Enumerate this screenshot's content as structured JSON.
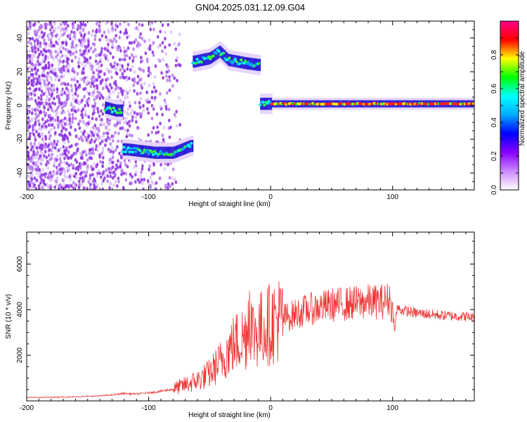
{
  "title": "GN04.2025.031.12.09.G04",
  "chart_data": [
    {
      "type": "heatmap",
      "xlabel": "Height of straight line (km)",
      "ylabel": "Frequency (Hz)",
      "xlim": [
        -200,
        167
      ],
      "ylim": [
        -50,
        50
      ],
      "xticks": [
        -200,
        -100,
        0,
        100
      ],
      "yticks": [
        -40,
        -20,
        0,
        20,
        40
      ],
      "colorbar": {
        "label": "Normalized spectral amplitude",
        "range": [
          0,
          1
        ],
        "ticks": [
          "0.0",
          "0.2",
          "0.4",
          "0.6",
          "0.8"
        ],
        "colors": [
          "#ffffff",
          "#cc88ff",
          "#8800ff",
          "#0000ff",
          "#00aaff",
          "#00ffff",
          "#00ff00",
          "#ffff00",
          "#ff0000",
          "#ff0088"
        ]
      },
      "ridge": [
        {
          "x": -200,
          "y": null
        },
        {
          "x": -137,
          "y": -1
        },
        {
          "x": -127,
          "y": -3
        },
        {
          "x": -118,
          "y": -26
        },
        {
          "x": -95,
          "y": -28
        },
        {
          "x": -80,
          "y": -28
        },
        {
          "x": -66,
          "y": -24
        },
        {
          "x": -63,
          "y": 26
        },
        {
          "x": -50,
          "y": 28
        },
        {
          "x": -42,
          "y": 32
        },
        {
          "x": -35,
          "y": 27
        },
        {
          "x": -20,
          "y": 25
        },
        {
          "x": -10,
          "y": 24
        },
        {
          "x": -9,
          "y": 1
        },
        {
          "x": 167,
          "y": 1
        }
      ],
      "noise_region": {
        "x_from": -200,
        "x_to": -75
      }
    },
    {
      "type": "line",
      "xlabel": "Height of straight line (km)",
      "ylabel": "SNR (10 * v/v)",
      "xlim": [
        -200,
        167
      ],
      "ylim": [
        0,
        7400
      ],
      "xticks": [
        -200,
        -100,
        0,
        100
      ],
      "yticks": [
        2000,
        4000,
        6000
      ],
      "color": "#ee3333",
      "series": [
        {
          "values_x": [
            -200,
            -180,
            -160,
            -140,
            -130,
            -120,
            -110,
            -100,
            -90,
            -80,
            -70,
            -60,
            -50,
            -45,
            -40,
            -35,
            -30,
            -25,
            -20,
            -17,
            -15,
            -10,
            -5,
            0,
            5,
            10,
            15,
            20,
            30,
            40,
            50,
            60,
            70,
            80,
            90,
            95,
            98,
            100,
            102,
            103,
            104,
            106,
            110,
            120,
            130,
            140,
            150,
            160,
            167
          ],
          "values_y": [
            150,
            160,
            180,
            220,
            260,
            330,
            300,
            360,
            420,
            520,
            700,
            900,
            1200,
            1500,
            1800,
            2200,
            2500,
            2700,
            2900,
            4300,
            3000,
            3100,
            3250,
            3400,
            3550,
            3650,
            3700,
            3800,
            4000,
            4100,
            4200,
            4250,
            4300,
            4350,
            4350,
            4400,
            4500,
            3900,
            3100,
            3800,
            4100,
            4000,
            3950,
            3850,
            3800,
            3750,
            3720,
            3700,
            3650
          ]
        }
      ]
    }
  ]
}
